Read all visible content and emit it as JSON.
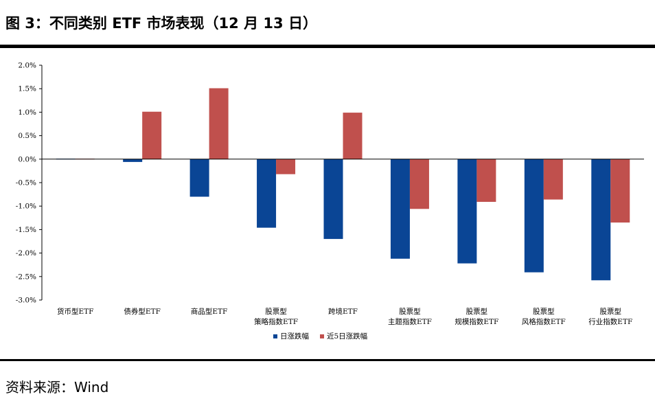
{
  "figure": {
    "title": "图 3：不同类别 ETF 市场表现（12 月 13 日）",
    "source": "资料来源：Wind"
  },
  "chart_data": {
    "type": "bar",
    "categories": [
      [
        "货币型ETF"
      ],
      [
        "债券型ETF"
      ],
      [
        "商品型ETF"
      ],
      [
        "股票型",
        "策略指数ETF"
      ],
      [
        "跨境ETF"
      ],
      [
        "股票型",
        "主题指数ETF"
      ],
      [
        "股票型",
        "规模指数ETF"
      ],
      [
        "股票型",
        "风格指数ETF"
      ],
      [
        "股票型",
        "行业指数ETF"
      ]
    ],
    "series": [
      {
        "name": "日涨跌幅",
        "color": "#0a4595",
        "values": [
          0.01,
          -0.06,
          -0.8,
          -1.46,
          -1.7,
          -2.12,
          -2.22,
          -2.41,
          -2.58
        ]
      },
      {
        "name": "近5日涨跌幅",
        "color": "#c0504d",
        "values": [
          0.01,
          1.01,
          1.51,
          -0.32,
          0.99,
          -1.06,
          -0.91,
          -0.86,
          -1.35
        ]
      }
    ],
    "ylim": [
      -3.0,
      2.0
    ],
    "yticks": [
      2.0,
      1.5,
      1.0,
      0.5,
      0.0,
      -0.5,
      -1.0,
      -1.5,
      -2.0,
      -2.5,
      -3.0
    ],
    "ytick_labels": [
      "2.0%",
      "1.5%",
      "1.0%",
      "0.5%",
      "0.0%",
      "-0.5%",
      "-1.0%",
      "-1.5%",
      "-2.0%",
      "-2.5%",
      "-3.0%"
    ],
    "legend_position": "bottom-center",
    "grid": false
  }
}
